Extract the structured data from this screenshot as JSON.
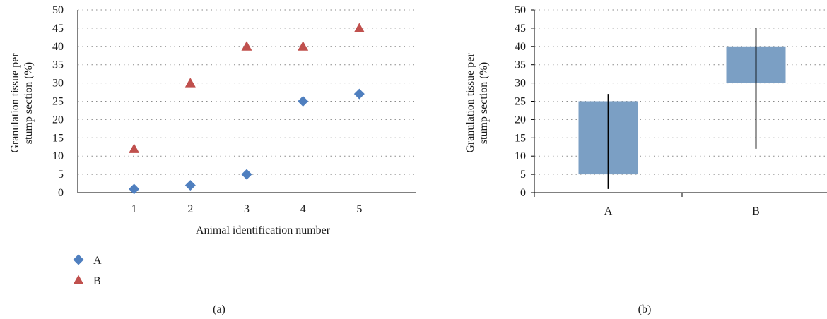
{
  "chart_data": [
    {
      "type": "scatter",
      "panel_label": "(a)",
      "xlabel": "Animal identification number",
      "ylabel_lines": [
        "Granulation tissue per",
        "stump section (%)"
      ],
      "ylim": [
        0,
        50
      ],
      "yticks": [
        0,
        5,
        10,
        15,
        20,
        25,
        30,
        35,
        40,
        45,
        50
      ],
      "x": [
        1,
        2,
        3,
        4,
        5
      ],
      "xlim": [
        0,
        6
      ],
      "grid": true,
      "legend_position": "bottom-left",
      "series": [
        {
          "name": "A",
          "marker": "diamond",
          "color": "#4f7fbf",
          "values": [
            1,
            2,
            5,
            25,
            27
          ]
        },
        {
          "name": "B",
          "marker": "triangle",
          "color": "#c0504d",
          "values": [
            12,
            30,
            40,
            40,
            45
          ]
        }
      ]
    },
    {
      "type": "box",
      "panel_label": "(b)",
      "ylabel_lines": [
        "Granulation tissue per",
        "stump section (%)"
      ],
      "ylim": [
        0,
        50
      ],
      "yticks": [
        0,
        5,
        10,
        15,
        20,
        25,
        30,
        35,
        40,
        45,
        50
      ],
      "categories": [
        "A",
        "B"
      ],
      "grid": true,
      "box_color": "#7b9fc4",
      "boxes": [
        {
          "category": "A",
          "q1": 5,
          "q3": 25,
          "min": 1,
          "max": 27
        },
        {
          "category": "B",
          "q1": 30,
          "q3": 40,
          "min": 12,
          "max": 45
        }
      ]
    }
  ]
}
